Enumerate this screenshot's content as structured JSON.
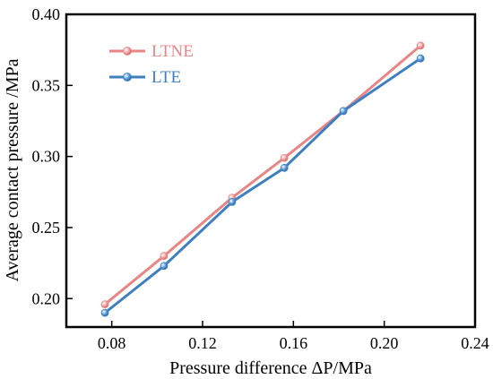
{
  "chart_data": {
    "type": "line",
    "xlabel": "Pressure difference ΔP/MPa",
    "ylabel": "Average contact pressure /MPa",
    "xlim": [
      0.06,
      0.24
    ],
    "ylim": [
      0.18,
      0.4
    ],
    "xticks": [
      0.08,
      0.12,
      0.16,
      0.2,
      0.24
    ],
    "xtick_labels": [
      "0.08",
      "0.12",
      "0.16",
      "0.20",
      "0.24"
    ],
    "yticks": [
      0.2,
      0.25,
      0.3,
      0.35,
      0.4
    ],
    "ytick_labels": [
      "0.20",
      "0.25",
      "0.30",
      "0.35",
      "0.40"
    ],
    "grid": false,
    "legend_position": "top-left",
    "series": [
      {
        "name": "LTNE",
        "color": "#e88585",
        "marker_color": "#f2a7a7",
        "x": [
          0.077,
          0.103,
          0.133,
          0.156,
          0.182,
          0.216
        ],
        "values": [
          0.196,
          0.23,
          0.271,
          0.299,
          0.332,
          0.378
        ]
      },
      {
        "name": "LTE",
        "color": "#3f7fbf",
        "marker_color": "#5f9fdf",
        "x": [
          0.077,
          0.103,
          0.133,
          0.156,
          0.182,
          0.216
        ],
        "values": [
          0.19,
          0.223,
          0.268,
          0.292,
          0.332,
          0.369
        ]
      }
    ]
  }
}
